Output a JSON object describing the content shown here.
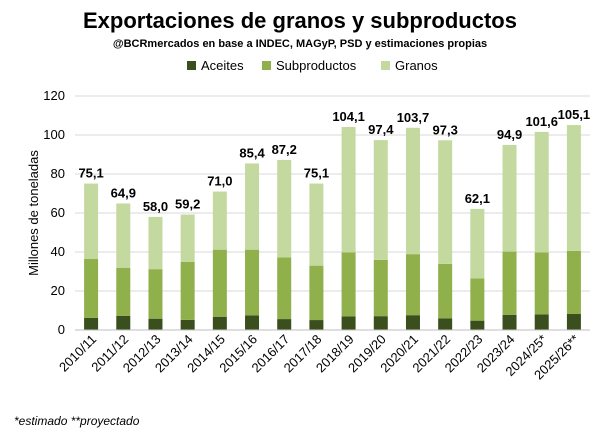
{
  "chart_data": {
    "type": "bar",
    "stacked": true,
    "title": "Exportaciones de granos y subproductos",
    "subtitle": "@BCRmercados en base a INDEC, MAGyP, PSD y estimaciones propias",
    "ylabel": "Millones de toneladas",
    "xlabel": "",
    "ylim": [
      0,
      120
    ],
    "yticks": [
      0,
      20,
      40,
      60,
      80,
      100,
      120
    ],
    "grid": true,
    "legend_position": "top",
    "categories": [
      "2010/11",
      "2011/12",
      "2012/13",
      "2013/14",
      "2014/15",
      "2015/16",
      "2016/17",
      "2017/18",
      "2018/19",
      "2019/20",
      "2020/21",
      "2021/22",
      "2022/23",
      "2023/24",
      "2024/25*",
      "2025/26**"
    ],
    "series": [
      {
        "name": "Aceites",
        "color": "#3a4f1d",
        "values": [
          6.2,
          7.2,
          5.8,
          5.2,
          6.8,
          7.5,
          5.6,
          5.1,
          7.0,
          7.1,
          7.6,
          6.0,
          4.8,
          7.8,
          8.0,
          8.2
        ]
      },
      {
        "name": "Subproductos",
        "color": "#8fb04a",
        "values": [
          30.2,
          24.6,
          25.4,
          29.8,
          34.4,
          33.7,
          31.6,
          27.9,
          32.8,
          28.9,
          31.3,
          27.9,
          21.7,
          32.4,
          31.8,
          32.4
        ]
      },
      {
        "name": "Granos",
        "color": "#c4d9a0",
        "values": [
          38.7,
          33.1,
          26.8,
          24.2,
          29.8,
          44.2,
          50.0,
          42.1,
          64.3,
          61.4,
          64.8,
          63.4,
          35.6,
          54.7,
          61.8,
          64.5
        ]
      }
    ],
    "totals": [
      75.1,
      64.9,
      58.0,
      59.2,
      71.0,
      85.4,
      87.2,
      75.1,
      104.1,
      97.4,
      103.7,
      97.3,
      62.1,
      94.9,
      101.6,
      105.1
    ],
    "total_labels": [
      "75,1",
      "64,9",
      "58,0",
      "59,2",
      "71,0",
      "85,4",
      "87,2",
      "75,1",
      "104,1",
      "97,4",
      "103,7",
      "97,3",
      "62,1",
      "94,9",
      "101,6",
      "105,1"
    ]
  },
  "footnote": "*estimado **proyectado"
}
